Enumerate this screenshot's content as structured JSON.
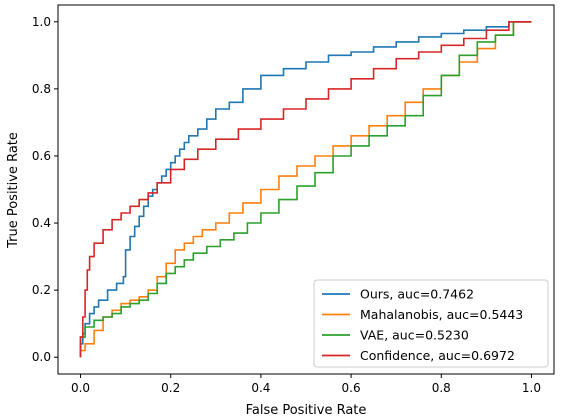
{
  "chart_data": {
    "type": "line",
    "title": "",
    "xlabel": "False Positive Rate",
    "ylabel": "True Positive Rate",
    "xlim": [
      -0.05,
      1.05
    ],
    "ylim": [
      -0.05,
      1.05
    ],
    "xticks": [
      "0.0",
      "0.2",
      "0.4",
      "0.6",
      "0.8",
      "1.0"
    ],
    "yticks": [
      "0.0",
      "0.2",
      "0.4",
      "0.6",
      "0.8",
      "1.0"
    ],
    "xtick_values": [
      0,
      0.2,
      0.4,
      0.6,
      0.8,
      1.0
    ],
    "ytick_values": [
      0,
      0.2,
      0.4,
      0.6,
      0.8,
      1.0
    ],
    "grid": false,
    "legend_position": "lower-right",
    "series": [
      {
        "name": "Ours, auc=0.7462",
        "color": "#1f77b4",
        "x": [
          0,
          0.005,
          0.01,
          0.02,
          0.03,
          0.04,
          0.06,
          0.08,
          0.095,
          0.1,
          0.1,
          0.11,
          0.12,
          0.13,
          0.14,
          0.15,
          0.16,
          0.17,
          0.18,
          0.19,
          0.2,
          0.21,
          0.22,
          0.23,
          0.24,
          0.26,
          0.28,
          0.3,
          0.33,
          0.36,
          0.4,
          0.45,
          0.5,
          0.55,
          0.6,
          0.65,
          0.7,
          0.75,
          0.8,
          0.85,
          0.9,
          0.95,
          1.0
        ],
        "y": [
          0.0,
          0.04,
          0.07,
          0.1,
          0.13,
          0.15,
          0.17,
          0.2,
          0.22,
          0.24,
          0.3,
          0.32,
          0.36,
          0.39,
          0.42,
          0.45,
          0.48,
          0.5,
          0.52,
          0.54,
          0.56,
          0.58,
          0.6,
          0.62,
          0.64,
          0.66,
          0.68,
          0.71,
          0.74,
          0.76,
          0.8,
          0.84,
          0.86,
          0.88,
          0.9,
          0.91,
          0.925,
          0.94,
          0.955,
          0.965,
          0.975,
          0.985,
          1.0
        ]
      },
      {
        "name": "Mahalanobis, auc=0.5443",
        "color": "#ff7f0e",
        "x": [
          0,
          0.01,
          0.03,
          0.05,
          0.07,
          0.09,
          0.11,
          0.13,
          0.15,
          0.17,
          0.19,
          0.21,
          0.23,
          0.25,
          0.27,
          0.3,
          0.33,
          0.36,
          0.4,
          0.44,
          0.48,
          0.52,
          0.56,
          0.6,
          0.64,
          0.68,
          0.72,
          0.76,
          0.8,
          0.84,
          0.88,
          0.92,
          0.96,
          1.0
        ],
        "y": [
          0.0,
          0.02,
          0.04,
          0.08,
          0.12,
          0.14,
          0.16,
          0.17,
          0.18,
          0.2,
          0.24,
          0.28,
          0.32,
          0.34,
          0.36,
          0.38,
          0.4,
          0.43,
          0.46,
          0.5,
          0.54,
          0.57,
          0.6,
          0.63,
          0.66,
          0.69,
          0.72,
          0.76,
          0.8,
          0.84,
          0.88,
          0.92,
          0.96,
          1.0
        ]
      },
      {
        "name": "VAE, auc=0.5230",
        "color": "#2ca02c",
        "x": [
          0,
          0.01,
          0.03,
          0.05,
          0.07,
          0.09,
          0.11,
          0.13,
          0.15,
          0.17,
          0.19,
          0.21,
          0.23,
          0.25,
          0.28,
          0.31,
          0.34,
          0.37,
          0.4,
          0.44,
          0.48,
          0.52,
          0.56,
          0.6,
          0.64,
          0.68,
          0.72,
          0.76,
          0.8,
          0.84,
          0.88,
          0.92,
          0.96,
          1.0
        ],
        "y": [
          0.0,
          0.06,
          0.09,
          0.11,
          0.12,
          0.13,
          0.15,
          0.16,
          0.17,
          0.19,
          0.22,
          0.25,
          0.27,
          0.29,
          0.31,
          0.33,
          0.35,
          0.37,
          0.4,
          0.43,
          0.47,
          0.51,
          0.55,
          0.6,
          0.63,
          0.66,
          0.69,
          0.72,
          0.78,
          0.84,
          0.9,
          0.94,
          0.96,
          1.0
        ]
      },
      {
        "name": "Confidence, auc=0.6972",
        "color": "#d62728",
        "x": [
          0,
          0.005,
          0.01,
          0.015,
          0.02,
          0.03,
          0.05,
          0.07,
          0.09,
          0.11,
          0.13,
          0.15,
          0.17,
          0.2,
          0.23,
          0.26,
          0.3,
          0.35,
          0.4,
          0.45,
          0.5,
          0.55,
          0.6,
          0.65,
          0.7,
          0.75,
          0.8,
          0.85,
          0.9,
          0.95,
          1.0
        ],
        "y": [
          0.0,
          0.06,
          0.12,
          0.2,
          0.26,
          0.3,
          0.34,
          0.38,
          0.41,
          0.43,
          0.45,
          0.47,
          0.49,
          0.52,
          0.56,
          0.59,
          0.62,
          0.65,
          0.68,
          0.71,
          0.74,
          0.77,
          0.8,
          0.83,
          0.86,
          0.89,
          0.91,
          0.93,
          0.95,
          0.975,
          1.0
        ]
      }
    ]
  }
}
